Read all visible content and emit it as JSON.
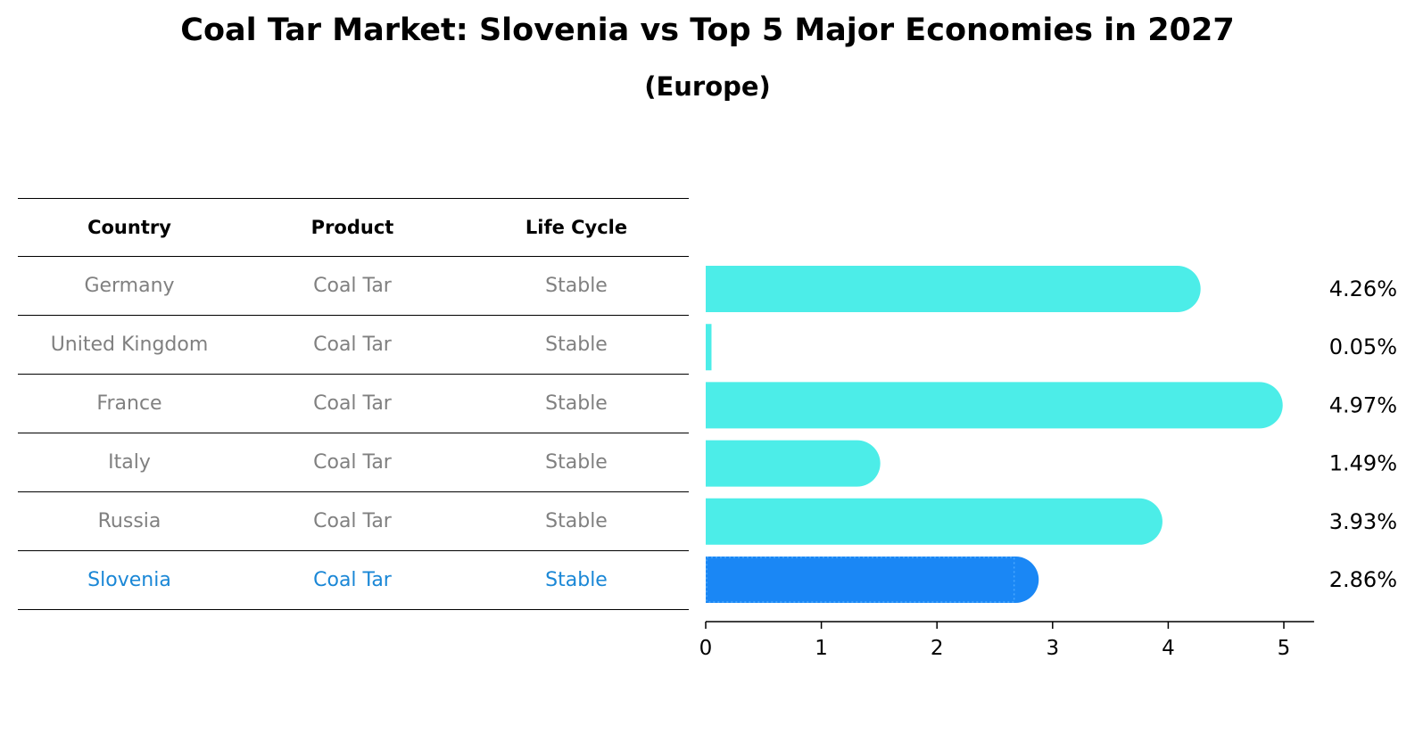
{
  "title": "Coal Tar Market: Slovenia vs Top 5 Major Economies in 2027",
  "subtitle": "(Europe)",
  "table": {
    "headers": [
      "Country",
      "Product",
      "Life Cycle"
    ],
    "rows": [
      {
        "country": "Germany",
        "product": "Coal Tar",
        "life_cycle": "Stable"
      },
      {
        "country": "United Kingdom",
        "product": "Coal Tar",
        "life_cycle": "Stable"
      },
      {
        "country": "France",
        "product": "Coal Tar",
        "life_cycle": "Stable"
      },
      {
        "country": "Italy",
        "product": "Coal Tar",
        "life_cycle": "Stable"
      },
      {
        "country": "Russia",
        "product": "Coal Tar",
        "life_cycle": "Stable"
      },
      {
        "country": "Slovenia",
        "product": "Coal Tar",
        "life_cycle": "Stable"
      }
    ]
  },
  "chart_data": {
    "type": "bar",
    "orientation": "horizontal",
    "categories": [
      "Germany",
      "United Kingdom",
      "France",
      "Italy",
      "Russia",
      "Slovenia"
    ],
    "values": [
      4.26,
      0.05,
      4.97,
      1.49,
      3.93,
      2.86
    ],
    "value_labels": [
      "4.26%",
      "0.05%",
      "4.97%",
      "1.49%",
      "3.93%",
      "2.86%"
    ],
    "xticks": [
      0,
      1,
      2,
      3,
      4,
      5
    ],
    "xlim": [
      0,
      5.2
    ],
    "highlight": "Slovenia",
    "colors": {
      "default": "#4cede8",
      "highlight": "#1a87f5",
      "text_muted": "#808080",
      "text_highlight": "#1a87d6"
    },
    "grid": false
  }
}
